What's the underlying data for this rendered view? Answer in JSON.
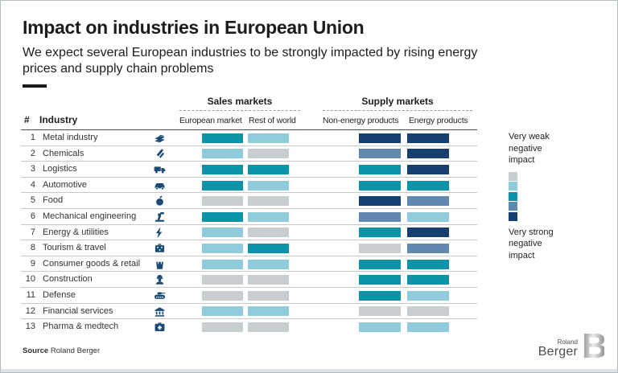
{
  "header": {
    "title": "Impact on industries in European Union",
    "subtitle": "We expect several European industries to be strongly impacted by rising energy prices and supply chain problems"
  },
  "chart_data": {
    "type": "heatmap",
    "title": "Impact on industries in European Union",
    "corner": {
      "num_header": "#",
      "industry_header": "Industry"
    },
    "column_groups": [
      {
        "label": "Sales markets",
        "columns": [
          "European market",
          "Rest of world"
        ]
      },
      {
        "label": "Supply markets",
        "columns": [
          "Non-energy products",
          "Energy products"
        ]
      }
    ],
    "columns": [
      "European market",
      "Rest of world",
      "Non-energy products",
      "Energy products"
    ],
    "rows": [
      {
        "num": "1",
        "industry": "Metal industry",
        "icon": "metal-industry-icon",
        "impacts": [
          3,
          2,
          5,
          5
        ]
      },
      {
        "num": "2",
        "industry": "Chemicals",
        "icon": "chemicals-icon",
        "impacts": [
          2,
          1,
          4,
          5
        ]
      },
      {
        "num": "3",
        "industry": "Logistics",
        "icon": "logistics-icon",
        "impacts": [
          3,
          3,
          3,
          5
        ]
      },
      {
        "num": "4",
        "industry": "Automotive",
        "icon": "automotive-icon",
        "impacts": [
          3,
          2,
          3,
          3
        ]
      },
      {
        "num": "5",
        "industry": "Food",
        "icon": "food-icon",
        "impacts": [
          1,
          1,
          5,
          4
        ]
      },
      {
        "num": "6",
        "industry": "Mechanical engineering",
        "icon": "mechanical-engineering-icon",
        "impacts": [
          3,
          2,
          4,
          2
        ]
      },
      {
        "num": "7",
        "industry": "Energy & utilities",
        "icon": "energy-utilities-icon",
        "impacts": [
          2,
          1,
          3,
          5
        ]
      },
      {
        "num": "8",
        "industry": "Tourism & travel",
        "icon": "tourism-travel-icon",
        "impacts": [
          2,
          3,
          1,
          4
        ]
      },
      {
        "num": "9",
        "industry": "Consumer goods & retail",
        "icon": "consumer-goods-icon",
        "impacts": [
          2,
          2,
          3,
          3
        ]
      },
      {
        "num": "10",
        "industry": "Construction",
        "icon": "construction-icon",
        "impacts": [
          1,
          1,
          3,
          3
        ]
      },
      {
        "num": "11",
        "industry": "Defense",
        "icon": "defense-icon",
        "impacts": [
          1,
          1,
          3,
          2
        ]
      },
      {
        "num": "12",
        "industry": "Financial services",
        "icon": "financial-services-icon",
        "impacts": [
          2,
          2,
          1,
          1
        ]
      },
      {
        "num": "13",
        "industry": "Pharma & medtech",
        "icon": "pharma-medtech-icon",
        "impacts": [
          1,
          1,
          2,
          2
        ]
      }
    ],
    "scale": {
      "levels": [
        1,
        2,
        3,
        4,
        5
      ],
      "colors": [
        "#c8cdd0",
        "#8fcbdc",
        "#0c93a8",
        "#6189b0",
        "#153f6e"
      ],
      "min_label": "Very weak negative impact",
      "max_label": "Very strong negative impact"
    },
    "colors": {
      "icon_navy": "#1b4a74"
    },
    "legend_position": "right"
  },
  "footer": {
    "source_label": "Source",
    "source_text": "Roland Berger",
    "logo": {
      "top": "Roland",
      "bottom": "Berger",
      "monogram": "B"
    }
  }
}
